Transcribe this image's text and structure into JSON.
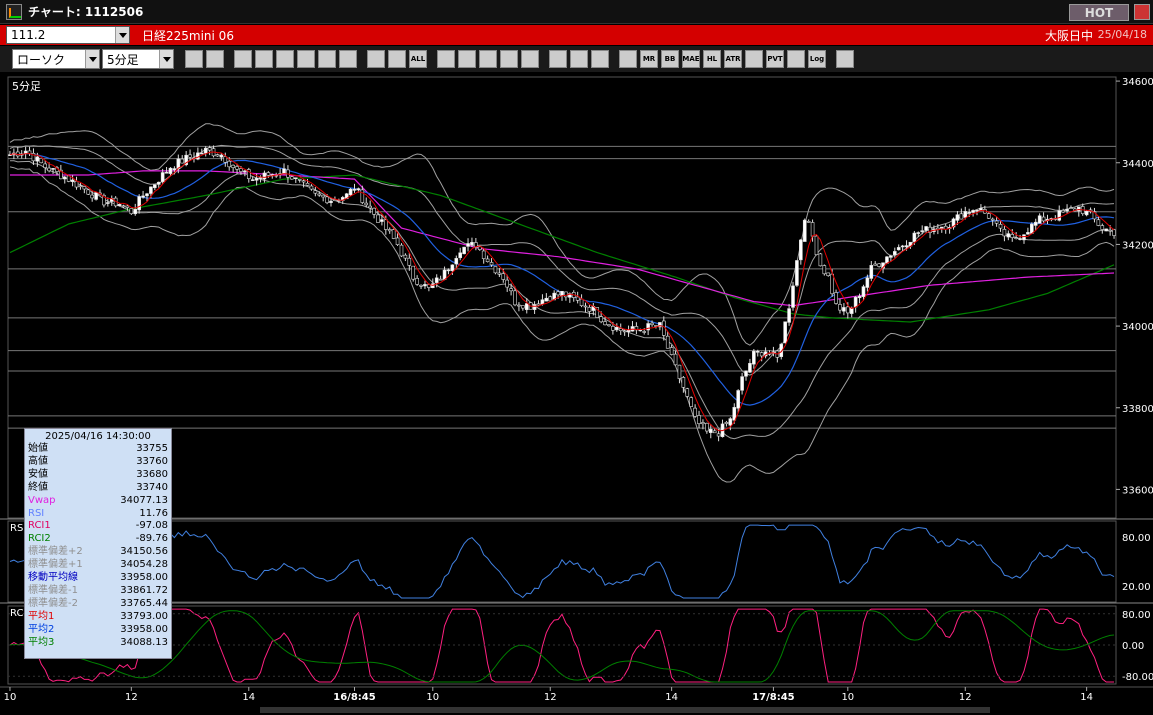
{
  "window": {
    "title": "チャート: 1112506",
    "hot_label": "HOT"
  },
  "symbol": {
    "code": "111.2",
    "name": "日経225mini 06",
    "session": "大阪日中",
    "date": "25/04/18"
  },
  "toolbar": {
    "chart_type": "ローソク",
    "timeframe": "5分足",
    "buttons": [
      "search",
      "hbar",
      "pencil",
      "shape",
      "cursor",
      "fill",
      "memo",
      "trash",
      "zoom-in",
      "zoom-out",
      "all",
      "bp",
      "find",
      "cfg",
      "plus-minus",
      "gray",
      "gear",
      "tools",
      "color",
      "VR",
      "MR",
      "BB",
      "MAE",
      "HL",
      "ATR",
      "PB",
      "PVT",
      "frame",
      "Log",
      "photo"
    ],
    "button_labels": [
      "",
      "",
      "",
      "",
      "",
      "",
      "",
      "",
      "",
      "",
      "ALL",
      "",
      "",
      "",
      "",
      "",
      "",
      "",
      "",
      "",
      "MR",
      "BB",
      "MAE",
      "HL",
      "ATR",
      "",
      "PVT",
      "",
      "Log",
      ""
    ]
  },
  "panels": {
    "main_label": "5分足",
    "rsi_label": "RSI",
    "rci_label": "RCI"
  },
  "legend": {
    "datetime": "2025/04/16  14:30:00",
    "rows": [
      {
        "label": "始値",
        "value": "33755",
        "color": "#000000"
      },
      {
        "label": "高値",
        "value": "33760",
        "color": "#000000"
      },
      {
        "label": "安値",
        "value": "33680",
        "color": "#000000"
      },
      {
        "label": "終値",
        "value": "33740",
        "color": "#000000"
      },
      {
        "label": "Vwap",
        "value": "34077.13",
        "color": "#e020e0"
      },
      {
        "label": "RSI",
        "value": "11.76",
        "color": "#6080ff"
      },
      {
        "label": "RCI1",
        "value": "-97.08",
        "color": "#e00060"
      },
      {
        "label": "RCI2",
        "value": "-89.76",
        "color": "#008000"
      },
      {
        "label": "標準偏差+2",
        "value": "34150.56",
        "color": "#909090"
      },
      {
        "label": "標準偏差+1",
        "value": "34054.28",
        "color": "#909090"
      },
      {
        "label": "移動平均線",
        "value": "33958.00",
        "color": "#0000c0"
      },
      {
        "label": "標準偏差-1",
        "value": "33861.72",
        "color": "#909090"
      },
      {
        "label": "標準偏差-2",
        "value": "33765.44",
        "color": "#909090"
      },
      {
        "label": "平均1",
        "value": "33793.00",
        "color": "#e00000"
      },
      {
        "label": "平均2",
        "value": "33958.00",
        "color": "#0040e0"
      },
      {
        "label": "平均3",
        "value": "34088.13",
        "color": "#008000"
      }
    ]
  },
  "colors": {
    "candle_up": "#ffffff",
    "candle_down": "#000000",
    "ma_short": "#e00000",
    "ma_mid": "#2060e0",
    "ma_long": "#008000",
    "vwap": "#e020e0",
    "bands": "#a0a0a0",
    "rsi": "#4080e0",
    "rci1": "#ff2080",
    "rci2": "#008000"
  },
  "chart_data": [
    {
      "type": "candlestick",
      "title": "",
      "ylim": [
        33530,
        34610
      ],
      "y_ticks": [
        "34600",
        "34400",
        "34200",
        "34000",
        "33800",
        "33600"
      ],
      "y_tick_values": [
        34600,
        34400,
        34200,
        34000,
        33800,
        33600
      ],
      "x_tick_labels": [
        "10",
        "12",
        "14",
        "16/8:45",
        "10",
        "12",
        "14",
        "17/8:45",
        "10",
        "12",
        "14"
      ],
      "x_tick_bars": [
        0,
        31,
        61,
        88,
        108,
        138,
        169,
        195,
        214,
        244,
        275
      ],
      "horizontal_lines": [
        34440,
        34410,
        34280,
        34140,
        34020,
        33940,
        33890,
        33780,
        33750
      ],
      "close_anchors": [
        [
          0,
          34420
        ],
        [
          4,
          34430
        ],
        [
          9,
          34390
        ],
        [
          15,
          34360
        ],
        [
          20,
          34330
        ],
        [
          24,
          34305
        ],
        [
          28,
          34300
        ],
        [
          31,
          34280
        ],
        [
          34,
          34320
        ],
        [
          37,
          34350
        ],
        [
          41,
          34390
        ],
        [
          45,
          34410
        ],
        [
          50,
          34430
        ],
        [
          54,
          34420
        ],
        [
          58,
          34380
        ],
        [
          62,
          34360
        ],
        [
          66,
          34370
        ],
        [
          70,
          34380
        ],
        [
          74,
          34350
        ],
        [
          78,
          34320
        ],
        [
          82,
          34310
        ],
        [
          86,
          34320
        ],
        [
          88,
          34340
        ],
        [
          91,
          34300
        ],
        [
          95,
          34250
        ],
        [
          99,
          34200
        ],
        [
          103,
          34120
        ],
        [
          107,
          34090
        ],
        [
          111,
          34130
        ],
        [
          115,
          34190
        ],
        [
          119,
          34200
        ],
        [
          123,
          34150
        ],
        [
          126,
          34120
        ],
        [
          129,
          34060
        ],
        [
          133,
          34050
        ],
        [
          137,
          34070
        ],
        [
          141,
          34080
        ],
        [
          145,
          34060
        ],
        [
          149,
          34040
        ],
        [
          152,
          34010
        ],
        [
          156,
          33990
        ],
        [
          160,
          33990
        ],
        [
          164,
          34000
        ],
        [
          166,
          34000
        ],
        [
          169,
          33920
        ],
        [
          172,
          33850
        ],
        [
          175,
          33770
        ],
        [
          178,
          33740
        ],
        [
          181,
          33740
        ],
        [
          184,
          33770
        ],
        [
          187,
          33870
        ],
        [
          190,
          33930
        ],
        [
          193,
          33940
        ],
        [
          196,
          33920
        ],
        [
          199,
          34050
        ],
        [
          201,
          34160
        ],
        [
          203,
          34270
        ],
        [
          205,
          34220
        ],
        [
          207,
          34150
        ],
        [
          209,
          34120
        ],
        [
          211,
          34050
        ],
        [
          214,
          34030
        ],
        [
          217,
          34080
        ],
        [
          220,
          34140
        ],
        [
          224,
          34170
        ],
        [
          228,
          34200
        ],
        [
          232,
          34230
        ],
        [
          236,
          34240
        ],
        [
          240,
          34250
        ],
        [
          244,
          34280
        ],
        [
          247,
          34290
        ],
        [
          250,
          34270
        ],
        [
          253,
          34230
        ],
        [
          256,
          34210
        ],
        [
          259,
          34230
        ],
        [
          263,
          34260
        ],
        [
          267,
          34270
        ],
        [
          270,
          34280
        ],
        [
          273,
          34290
        ],
        [
          276,
          34270
        ],
        [
          279,
          34240
        ],
        [
          282,
          34230
        ]
      ],
      "vwap_anchors": [
        [
          0,
          34370
        ],
        [
          20,
          34370
        ],
        [
          34,
          34380
        ],
        [
          50,
          34380
        ],
        [
          70,
          34370
        ],
        [
          88,
          34360
        ],
        [
          100,
          34240
        ],
        [
          120,
          34190
        ],
        [
          140,
          34170
        ],
        [
          160,
          34140
        ],
        [
          175,
          34100
        ],
        [
          190,
          34060
        ],
        [
          200,
          34050
        ],
        [
          214,
          34070
        ],
        [
          235,
          34100
        ],
        [
          260,
          34120
        ],
        [
          282,
          34130
        ]
      ],
      "ma_long_anchors": [
        [
          0,
          34180
        ],
        [
          15,
          34250
        ],
        [
          30,
          34285
        ],
        [
          50,
          34320
        ],
        [
          70,
          34360
        ],
        [
          88,
          34370
        ],
        [
          110,
          34320
        ],
        [
          130,
          34250
        ],
        [
          150,
          34180
        ],
        [
          170,
          34120
        ],
        [
          185,
          34070
        ],
        [
          200,
          34030
        ],
        [
          210,
          34020
        ],
        [
          230,
          34010
        ],
        [
          250,
          34040
        ],
        [
          265,
          34080
        ],
        [
          282,
          34150
        ]
      ]
    },
    {
      "type": "line",
      "series": [
        {
          "name": "RSI",
          "values": []
        }
      ],
      "ylim": [
        0,
        100
      ],
      "y_ticks": [
        "80.00",
        "20.00"
      ],
      "y_tick_values": [
        80,
        20
      ]
    },
    {
      "type": "line",
      "series": [
        {
          "name": "RCI1",
          "values": []
        },
        {
          "name": "RCI2",
          "values": []
        }
      ],
      "ylim": [
        -100,
        100
      ],
      "y_ticks": [
        "80.00",
        "0.00",
        "-80.00"
      ],
      "y_tick_values": [
        80,
        0,
        -80
      ]
    }
  ]
}
